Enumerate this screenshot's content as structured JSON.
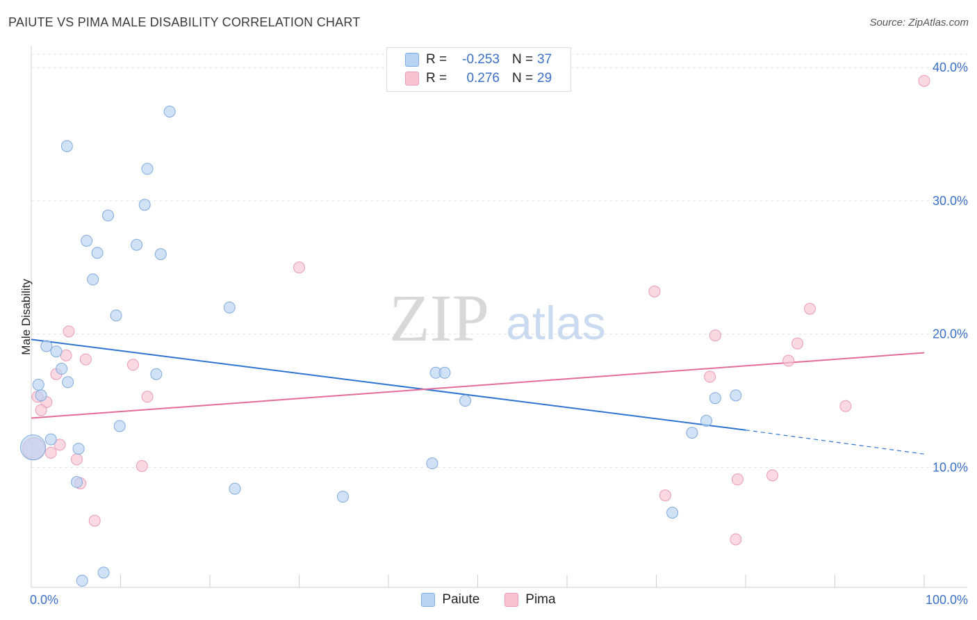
{
  "title": "PAIUTE VS PIMA MALE DISABILITY CORRELATION CHART",
  "source": "Source: ZipAtlas.com",
  "watermark": {
    "zip": "ZIP",
    "atlas": "atlas"
  },
  "colors": {
    "paiute_fill": "#b9d3f3",
    "paiute_stroke": "#7faadf",
    "paiute_line": "#2e73d2",
    "pima_fill": "#f8c4d4",
    "pima_stroke": "#ec9ab6",
    "pima_line": "#e26c97",
    "tick_label": "#3a6fc7",
    "grid": "#e3e3e3"
  },
  "legend_top": {
    "rows": [
      {
        "label": "R =",
        "r": "-0.253",
        "n_label": "N =",
        "n": "37",
        "series": "paiute"
      },
      {
        "label": "R =",
        "r": "0.276",
        "n_label": "N =",
        "n": "29",
        "series": "pima"
      }
    ]
  },
  "chart_data": {
    "type": "scatter",
    "title": "PAIUTE VS PIMA MALE DISABILITY CORRELATION CHART",
    "xlabel": "",
    "ylabel": "Male Disability",
    "xlim": [
      0,
      100
    ],
    "ylim": [
      1,
      41
    ],
    "x_tick_labels": [
      "0.0%",
      "100.0%"
    ],
    "y_ticks": [
      10,
      20,
      30,
      40
    ],
    "y_tick_labels": [
      "10.0%",
      "20.0%",
      "30.0%",
      "40.0%"
    ],
    "grid": true,
    "series": [
      {
        "name": "Paiute",
        "r": -0.253,
        "n": 37,
        "trend": {
          "x0": 0,
          "y0": 19.6,
          "x1": 80,
          "y1": 12.8,
          "dashed_to_x": 100,
          "dashed_to_y": 11.0
        },
        "points": [
          [
            15.5,
            36.7
          ],
          [
            4.0,
            34.1
          ],
          [
            13.0,
            32.4
          ],
          [
            12.7,
            29.7
          ],
          [
            8.6,
            28.9
          ],
          [
            6.2,
            27.0
          ],
          [
            11.8,
            26.7
          ],
          [
            7.4,
            26.1
          ],
          [
            14.5,
            26.0
          ],
          [
            6.9,
            24.1
          ],
          [
            9.5,
            21.4
          ],
          [
            22.2,
            22.0
          ],
          [
            1.7,
            19.1
          ],
          [
            2.8,
            18.7
          ],
          [
            3.4,
            17.4
          ],
          [
            4.1,
            16.4
          ],
          [
            14.0,
            17.0
          ],
          [
            0.8,
            16.2
          ],
          [
            1.1,
            15.4
          ],
          [
            45.3,
            17.1
          ],
          [
            46.3,
            17.1
          ],
          [
            48.6,
            15.0
          ],
          [
            76.6,
            15.2
          ],
          [
            78.9,
            15.4
          ],
          [
            75.6,
            13.5
          ],
          [
            9.9,
            13.1
          ],
          [
            74.0,
            12.6
          ],
          [
            2.2,
            12.1
          ],
          [
            5.3,
            11.4
          ],
          [
            44.9,
            10.3
          ],
          [
            5.1,
            8.9
          ],
          [
            22.8,
            8.4
          ],
          [
            34.9,
            7.8
          ],
          [
            71.8,
            6.6
          ],
          [
            8.1,
            2.1
          ],
          [
            5.7,
            1.5
          ],
          [
            0.2,
            11.5
          ]
        ]
      },
      {
        "name": "Pima",
        "r": 0.276,
        "n": 29,
        "trend": {
          "x0": 0,
          "y0": 13.7,
          "x1": 100,
          "y1": 18.6
        },
        "points": [
          [
            100.0,
            39.0
          ],
          [
            30.0,
            25.0
          ],
          [
            69.8,
            23.2
          ],
          [
            87.2,
            21.9
          ],
          [
            4.2,
            20.2
          ],
          [
            76.6,
            19.9
          ],
          [
            85.8,
            19.3
          ],
          [
            3.9,
            18.4
          ],
          [
            6.1,
            18.1
          ],
          [
            84.8,
            18.0
          ],
          [
            11.4,
            17.7
          ],
          [
            2.8,
            17.0
          ],
          [
            76.0,
            16.8
          ],
          [
            0.7,
            15.3
          ],
          [
            13.0,
            15.3
          ],
          [
            1.7,
            14.9
          ],
          [
            1.1,
            14.3
          ],
          [
            91.2,
            14.6
          ],
          [
            3.2,
            11.7
          ],
          [
            2.2,
            11.1
          ],
          [
            5.1,
            10.6
          ],
          [
            12.4,
            10.1
          ],
          [
            83.0,
            9.4
          ],
          [
            79.1,
            9.1
          ],
          [
            5.5,
            8.8
          ],
          [
            71.0,
            7.9
          ],
          [
            7.1,
            6.0
          ],
          [
            78.9,
            4.6
          ],
          [
            0.3,
            11.4
          ]
        ]
      }
    ]
  }
}
